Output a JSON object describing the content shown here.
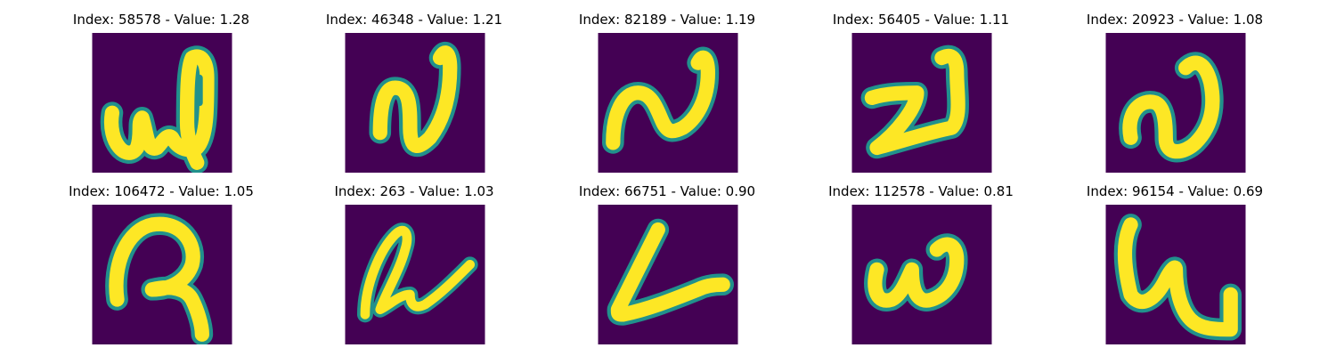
{
  "colors": {
    "background": "#440154",
    "mid": "#21918c",
    "teal": "#35b779",
    "stroke": "#fde725"
  },
  "panels": [
    {
      "title": "Index: 58578 - Value: 1.28",
      "glyph": "w-with-loop-icon"
    },
    {
      "title": "Index: 46348 - Value: 1.21",
      "glyph": "n-shape-icon"
    },
    {
      "title": "Index: 82189 - Value: 1.19",
      "glyph": "n-shape-icon"
    },
    {
      "title": "Index: 56405 - Value: 1.11",
      "glyph": "z-shape-icon"
    },
    {
      "title": "Index: 20923 - Value: 1.08",
      "glyph": "n-shape-icon"
    },
    {
      "title": "Index: 106472 - Value: 1.05",
      "glyph": "q-shape-icon"
    },
    {
      "title": "Index: 263 - Value: 1.03",
      "glyph": "loop-stroke-icon"
    },
    {
      "title": "Index: 66751 - Value: 0.90",
      "glyph": "l-shape-icon"
    },
    {
      "title": "Index: 112578 - Value: 0.81",
      "glyph": "w-shape-icon"
    },
    {
      "title": "Index: 96154 - Value: 0.69",
      "glyph": "u-hook-icon"
    }
  ]
}
